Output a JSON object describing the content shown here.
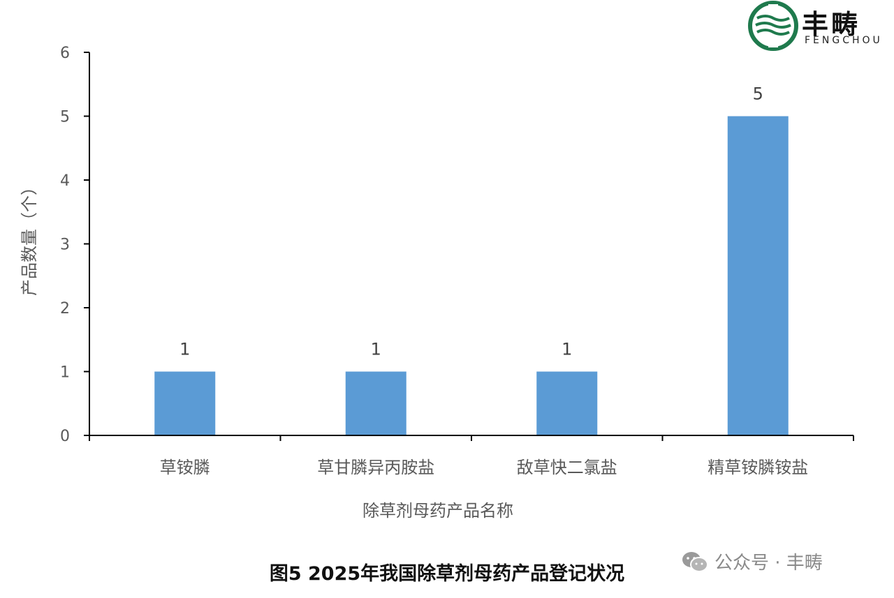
{
  "chart_data": {
    "type": "bar",
    "categories": [
      "草铵膦",
      "草甘膦异丙胺盐",
      "敌草快二氯盐",
      "精草铵膦铵盐"
    ],
    "values": [
      1,
      1,
      1,
      5
    ],
    "data_labels": [
      "1",
      "1",
      "1",
      "5"
    ],
    "title": "图5 2025年我国除草剂母药产品登记状况",
    "xlabel": "除草剂母药产品名称",
    "ylabel": "产品数量（个）",
    "ylim": [
      0,
      6
    ],
    "yticks": [
      "0",
      "1",
      "2",
      "3",
      "4",
      "5",
      "6"
    ],
    "grid": false,
    "bar_color": "#5b9bd5",
    "axis_color": "#000000"
  },
  "logo": {
    "name": "丰畴",
    "sub": "FENGCHOU",
    "color": "#1f7a4d"
  },
  "watermark": {
    "text": "公众号 · 丰畴"
  }
}
